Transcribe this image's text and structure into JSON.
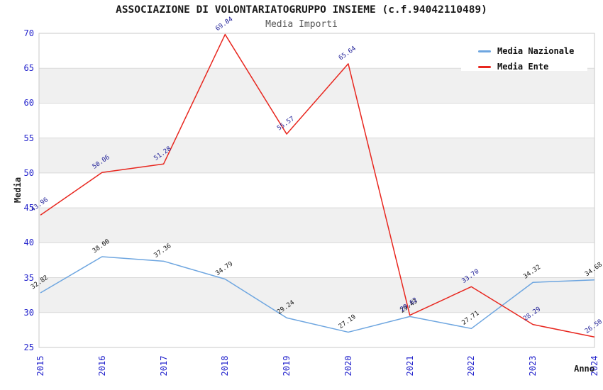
{
  "title": "ASSOCIAZIONE DI VOLONTARIATOGRUPPO INSIEME (c.f.94042110489)",
  "subtitle": "Media Importi",
  "chart_data": {
    "type": "line",
    "categories": [
      "2015",
      "2016",
      "2017",
      "2018",
      "2019",
      "2020",
      "2021",
      "2022",
      "2023",
      "2024"
    ],
    "series": [
      {
        "name": "Media Nazionale",
        "color": "#6EA6E0",
        "label_color": "#161616",
        "values": [
          32.82,
          38.0,
          37.36,
          34.79,
          29.24,
          27.19,
          29.43,
          27.71,
          34.32,
          34.68
        ]
      },
      {
        "name": "Media Ente",
        "color": "#E8271F",
        "label_color": "#1c1c96",
        "values": [
          43.96,
          50.06,
          51.28,
          69.84,
          55.57,
          65.64,
          29.62,
          33.7,
          28.29,
          26.5
        ]
      }
    ],
    "title": "ASSOCIAZIONE DI VOLONTARIATOGRUPPO INSIEME (c.f.94042110489)",
    "xlabel": "Anno",
    "ylabel": "Media",
    "ylim": [
      25,
      70
    ],
    "y_ticks": [
      25,
      30,
      35,
      40,
      45,
      50,
      55,
      60,
      65,
      70
    ],
    "grid": true,
    "legend_position": "top-right",
    "tick_color": "#2323cc",
    "band_colors": [
      "#ffffff",
      "#f0f0f0"
    ],
    "gridline_color": "#d9d9d9",
    "plot_border_color": "#c8c8c8"
  }
}
